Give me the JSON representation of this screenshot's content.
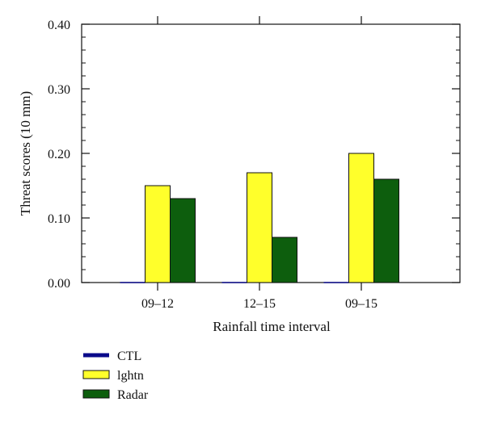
{
  "chart_data": {
    "type": "bar",
    "title": "",
    "xlabel": "Rainfall time interval",
    "ylabel": "Threat scores (10 mm)",
    "categories": [
      "09–12",
      "12–15",
      "09–15"
    ],
    "ylim": [
      0,
      0.4
    ],
    "y_ticks": [
      "0.00",
      "0.10",
      "0.20",
      "0.30",
      "0.40"
    ],
    "y_tick_values": [
      0,
      0.1,
      0.2,
      0.3,
      0.4
    ],
    "grid": false,
    "legend_placement": "bottom-left",
    "series": [
      {
        "name": "CTL",
        "values": [
          0,
          0,
          0
        ],
        "color": "#0a0a8a"
      },
      {
        "name": "lghtn",
        "values": [
          0.15,
          0.17,
          0.2
        ],
        "color": "#ffff2b"
      },
      {
        "name": "Radar",
        "values": [
          0.13,
          0.07,
          0.16
        ],
        "color": "#0d5e0d"
      }
    ]
  }
}
